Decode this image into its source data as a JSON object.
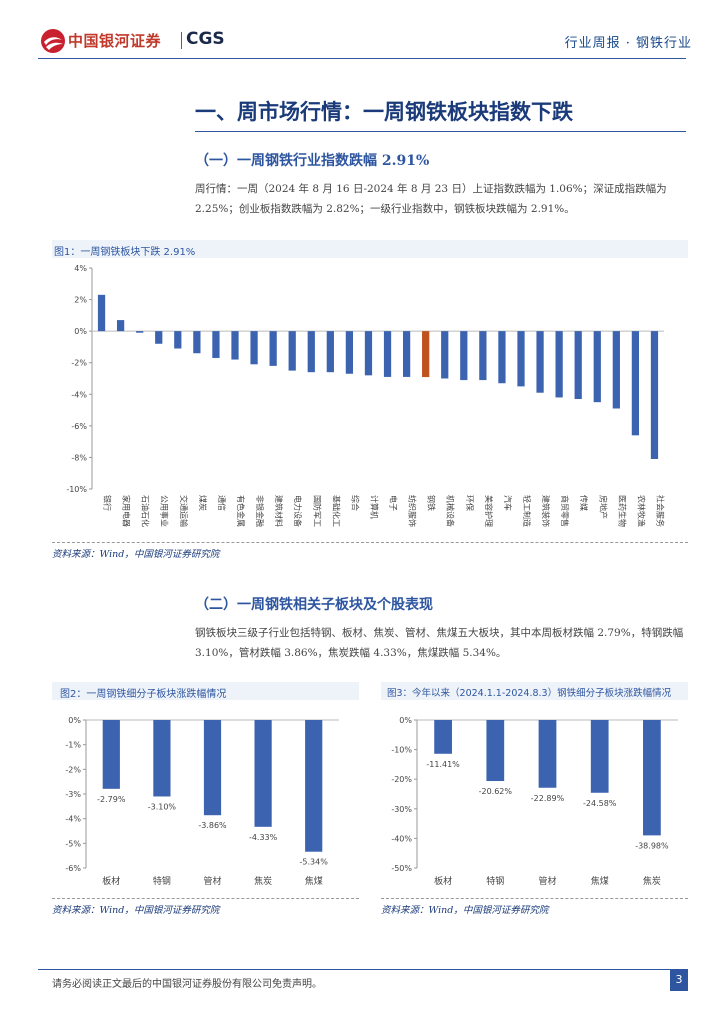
{
  "header": {
    "brand": "中国银河证券",
    "brand_en": "CGS",
    "report_type": "行业周报 · 钢铁行业"
  },
  "section": {
    "title": "一、周市场行情：一周钢铁板块指数下跌",
    "sub1_title": "（一）一周钢铁行业指数跌幅 2.91%",
    "para1": "周行情：一周（2024 年 8 月 16 日-2024 年 8 月 23 日）上证指数跌幅为 1.06%；深证成指跌幅为 2.25%；创业板指数跌幅为 2.82%；一级行业指数中，钢铁板块跌幅为 2.91%。",
    "sub2_title": "（二）一周钢铁相关子板块及个股表现",
    "para2": "钢铁板块三级子行业包括特钢、板材、焦炭、管材、焦煤五大板块，其中本周板材跌幅 2.79%，特钢跌幅 3.10%，管材跌幅 3.86%，焦炭跌幅 4.33%，焦煤跌幅 5.34%。"
  },
  "figures": {
    "fig1_title": "图1：一周钢铁板块下跌 2.91%",
    "fig2_title": "图2：一周钢铁细分子板块涨跌幅情况",
    "fig3_title": "图3：今年以来（2024.1.1-2024.8.3）钢铁细分子板块涨跌幅情况",
    "source": "资料来源：Wind，中国银河证券研究院"
  },
  "footer": {
    "disclaimer": "请务必阅读正文最后的中国银河证券股份有限公司免责声明。",
    "page": "3"
  },
  "colors": {
    "bar": "#3b63b0",
    "highlight": "#c0521f",
    "accent": "#2e56a0"
  },
  "chart_data": [
    {
      "type": "bar",
      "title": "图1：一周钢铁板块下跌 2.91%",
      "categories": [
        "银行",
        "家用电器",
        "石油石化",
        "公用事业",
        "交通运输",
        "煤炭",
        "通信",
        "有色金属",
        "非银金融",
        "建筑材料",
        "电力设备",
        "国防军工",
        "基础化工",
        "综合",
        "计算机",
        "电子",
        "纺织服饰",
        "钢铁",
        "机械设备",
        "环保",
        "美容护理",
        "汽车",
        "轻工制造",
        "建筑装饰",
        "商贸零售",
        "传媒",
        "房地产",
        "医药生物",
        "农林牧渔",
        "社会服务"
      ],
      "values": [
        2.3,
        0.7,
        -0.1,
        -0.8,
        -1.1,
        -1.4,
        -1.7,
        -1.8,
        -2.1,
        -2.2,
        -2.5,
        -2.6,
        -2.6,
        -2.7,
        -2.8,
        -2.9,
        -2.9,
        -2.91,
        -3.0,
        -3.1,
        -3.1,
        -3.3,
        -3.5,
        -3.9,
        -4.2,
        -4.3,
        -4.5,
        -4.9,
        -6.6,
        -8.1
      ],
      "highlight_index": 17,
      "ylim": [
        -10,
        4
      ],
      "yticks": [
        "4%",
        "2%",
        "0%",
        "-2%",
        "-4%",
        "-6%",
        "-8%",
        "-10%"
      ]
    },
    {
      "type": "bar",
      "title": "图2：一周钢铁细分子板块涨跌幅情况",
      "categories": [
        "板材",
        "特钢",
        "管材",
        "焦炭",
        "焦煤"
      ],
      "values": [
        -2.79,
        -3.1,
        -3.86,
        -4.33,
        -5.34
      ],
      "labels": [
        "-2.79%",
        "-3.10%",
        "-3.86%",
        "-4.33%",
        "-5.34%"
      ],
      "ylim": [
        -6,
        0
      ],
      "yticks": [
        "0%",
        "-1%",
        "-2%",
        "-3%",
        "-4%",
        "-5%",
        "-6%"
      ]
    },
    {
      "type": "bar",
      "title": "图3：今年以来（2024.1.1-2024.8.3）钢铁细分子板块涨跌幅情况",
      "categories": [
        "板材",
        "特钢",
        "管材",
        "焦煤",
        "焦炭"
      ],
      "values": [
        -11.41,
        -20.62,
        -22.89,
        -24.58,
        -38.98
      ],
      "labels": [
        "-11.41%",
        "-20.62%",
        "-22.89%",
        "-24.58%",
        "-38.98%"
      ],
      "ylim": [
        -50,
        0
      ],
      "yticks": [
        "0%",
        "-10%",
        "-20%",
        "-30%",
        "-40%",
        "-50%"
      ]
    }
  ]
}
